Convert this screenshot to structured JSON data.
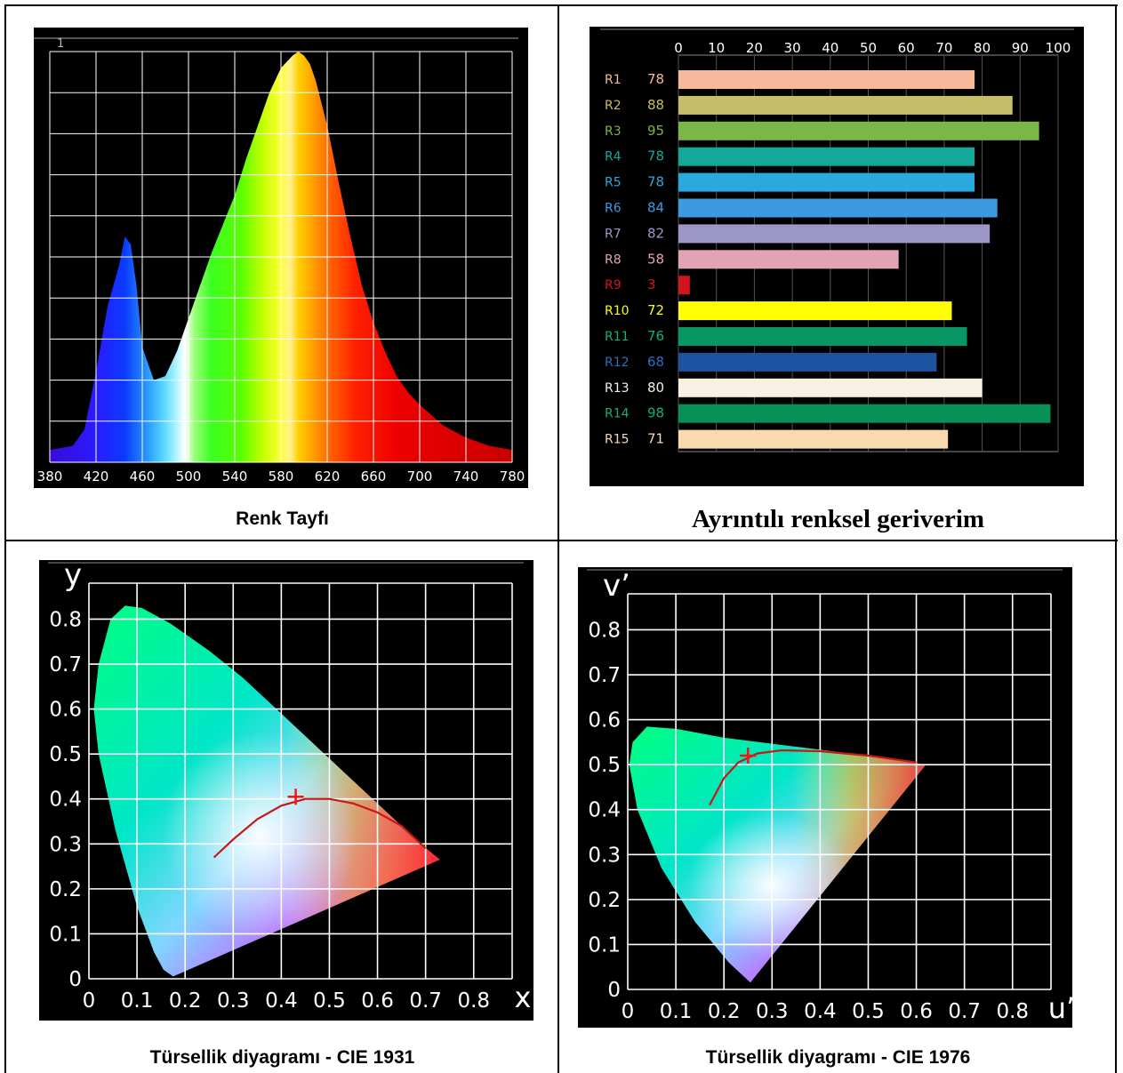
{
  "captions": {
    "spectrum": "Renk Tayfı",
    "cri": "Ayrıntılı renksel geriverim",
    "cie1931": "Türsellik diyagramı - CIE 1931",
    "cie1976": "Türsellik diyagramı - CIE 1976"
  },
  "chart_data": [
    {
      "type": "area",
      "x_ticks": [
        380,
        420,
        460,
        500,
        540,
        580,
        620,
        660,
        700,
        740,
        780
      ],
      "xlim": [
        380,
        780
      ],
      "ylim": [
        0,
        1
      ],
      "y_tick_label": "1",
      "grid": true,
      "x": [
        380,
        400,
        410,
        420,
        430,
        440,
        445,
        450,
        455,
        460,
        470,
        480,
        490,
        500,
        510,
        520,
        530,
        540,
        550,
        560,
        570,
        580,
        590,
        595,
        600,
        605,
        610,
        620,
        630,
        640,
        650,
        660,
        670,
        680,
        690,
        700,
        720,
        740,
        760,
        780
      ],
      "values": [
        0.03,
        0.04,
        0.08,
        0.22,
        0.38,
        0.48,
        0.55,
        0.53,
        0.43,
        0.28,
        0.2,
        0.21,
        0.27,
        0.35,
        0.43,
        0.51,
        0.58,
        0.65,
        0.74,
        0.82,
        0.9,
        0.96,
        0.99,
        1.0,
        0.99,
        0.97,
        0.93,
        0.82,
        0.68,
        0.55,
        0.43,
        0.34,
        0.27,
        0.21,
        0.17,
        0.14,
        0.09,
        0.06,
        0.04,
        0.03
      ]
    },
    {
      "type": "bar",
      "orientation": "horizontal",
      "xlim": [
        0,
        100
      ],
      "x_ticks": [
        0,
        10,
        20,
        30,
        40,
        50,
        60,
        70,
        80,
        90,
        100
      ],
      "categories": [
        "R1",
        "R2",
        "R3",
        "R4",
        "R5",
        "R6",
        "R7",
        "R8",
        "R9",
        "R10",
        "R11",
        "R12",
        "R13",
        "R14",
        "R15"
      ],
      "values": [
        78,
        88,
        95,
        78,
        78,
        84,
        82,
        58,
        3,
        72,
        76,
        68,
        80,
        98,
        71
      ],
      "colors": [
        "#f7b89b",
        "#c8bd6b",
        "#7ab648",
        "#14a79a",
        "#29a9de",
        "#3d9ae0",
        "#9d97c6",
        "#e2a3b4",
        "#d4141c",
        "#ffff00",
        "#069764",
        "#1b53a0",
        "#f8f1e4",
        "#069256",
        "#f8d9b0"
      ],
      "label_colors": [
        "#f7b89b",
        "#c8bd6b",
        "#7ab648",
        "#14a79a",
        "#29a9de",
        "#3d9ae0",
        "#9d97c6",
        "#e2a3b4",
        "#d4141c",
        "#ffff00",
        "#15b070",
        "#2f6cc0",
        "#f8f1e4",
        "#15b070",
        "#f8d9b0"
      ],
      "grid": true
    },
    {
      "type": "scatter",
      "xlabel": "x",
      "ylabel": "y",
      "x_ticks": [
        0,
        0.1,
        0.2,
        0.3,
        0.4,
        0.5,
        0.6,
        0.7,
        0.8
      ],
      "y_ticks": [
        0,
        0.1,
        0.2,
        0.3,
        0.4,
        0.5,
        0.6,
        0.7,
        0.8
      ],
      "xlim": [
        0,
        0.88
      ],
      "ylim": [
        0,
        0.88
      ],
      "locus": [
        [
          0.175,
          0.005
        ],
        [
          0.155,
          0.02
        ],
        [
          0.135,
          0.06
        ],
        [
          0.1,
          0.16
        ],
        [
          0.055,
          0.33
        ],
        [
          0.02,
          0.5
        ],
        [
          0.01,
          0.6
        ],
        [
          0.02,
          0.7
        ],
        [
          0.045,
          0.8
        ],
        [
          0.075,
          0.83
        ],
        [
          0.11,
          0.825
        ],
        [
          0.17,
          0.79
        ],
        [
          0.25,
          0.73
        ],
        [
          0.32,
          0.67
        ],
        [
          0.4,
          0.59
        ],
        [
          0.47,
          0.52
        ],
        [
          0.55,
          0.44
        ],
        [
          0.62,
          0.37
        ],
        [
          0.69,
          0.3
        ],
        [
          0.73,
          0.265
        ]
      ],
      "planckian": [
        [
          0.26,
          0.27
        ],
        [
          0.3,
          0.31
        ],
        [
          0.35,
          0.355
        ],
        [
          0.4,
          0.385
        ],
        [
          0.45,
          0.4
        ],
        [
          0.5,
          0.4
        ],
        [
          0.55,
          0.39
        ],
        [
          0.6,
          0.37
        ],
        [
          0.65,
          0.34
        ],
        [
          0.7,
          0.29
        ]
      ],
      "point": [
        0.43,
        0.405
      ],
      "grid": true
    },
    {
      "type": "scatter",
      "xlabel": "u’",
      "ylabel": "v’",
      "x_ticks": [
        0,
        0.1,
        0.2,
        0.3,
        0.4,
        0.5,
        0.6,
        0.7,
        0.8
      ],
      "y_ticks": [
        0,
        0.1,
        0.2,
        0.3,
        0.4,
        0.5,
        0.6,
        0.7,
        0.8
      ],
      "xlim": [
        0,
        0.88
      ],
      "ylim": [
        0,
        0.88
      ],
      "locus": [
        [
          0.255,
          0.015
        ],
        [
          0.21,
          0.06
        ],
        [
          0.14,
          0.15
        ],
        [
          0.07,
          0.27
        ],
        [
          0.02,
          0.4
        ],
        [
          0.003,
          0.5
        ],
        [
          0.01,
          0.55
        ],
        [
          0.04,
          0.585
        ],
        [
          0.1,
          0.58
        ],
        [
          0.2,
          0.56
        ],
        [
          0.35,
          0.54
        ],
        [
          0.5,
          0.52
        ],
        [
          0.62,
          0.5
        ]
      ],
      "planckian": [
        [
          0.17,
          0.41
        ],
        [
          0.2,
          0.47
        ],
        [
          0.23,
          0.505
        ],
        [
          0.27,
          0.525
        ],
        [
          0.32,
          0.532
        ],
        [
          0.4,
          0.53
        ],
        [
          0.5,
          0.52
        ],
        [
          0.6,
          0.505
        ]
      ],
      "point": [
        0.25,
        0.52
      ],
      "grid": true
    }
  ]
}
